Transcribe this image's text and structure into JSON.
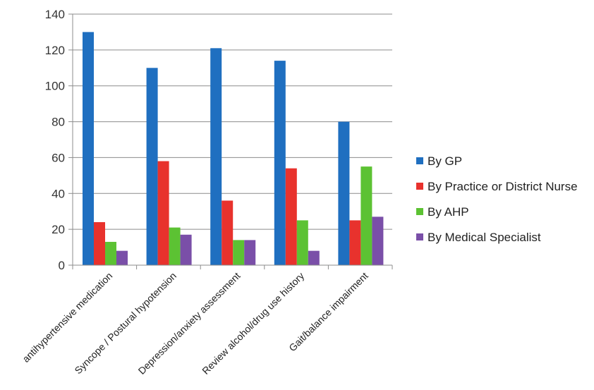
{
  "chart_data": {
    "type": "bar",
    "categories": [
      "antihypertensive medication",
      "Syncope / Postural hypotension",
      "Depression/anxiety assessment",
      "Review alcohol/drug use history",
      "Gait/balance impairment"
    ],
    "series": [
      {
        "name": "By GP",
        "values": [
          130,
          110,
          121,
          114,
          80
        ],
        "color": "#1f6fc0"
      },
      {
        "name": "By Practice or District Nurse",
        "values": [
          24,
          58,
          36,
          54,
          25
        ],
        "color": "#e8322d"
      },
      {
        "name": "By AHP",
        "values": [
          13,
          21,
          14,
          25,
          55
        ],
        "color": "#5cc233"
      },
      {
        "name": "By Medical Specialist",
        "values": [
          8,
          17,
          14,
          8,
          27
        ],
        "color": "#7a4fa8"
      }
    ],
    "title": "",
    "xlabel": "",
    "ylabel": "",
    "ylim": [
      0,
      140
    ],
    "yticks": [
      0,
      20,
      40,
      60,
      80,
      100,
      120,
      140
    ],
    "grid": true,
    "legend": "right"
  }
}
